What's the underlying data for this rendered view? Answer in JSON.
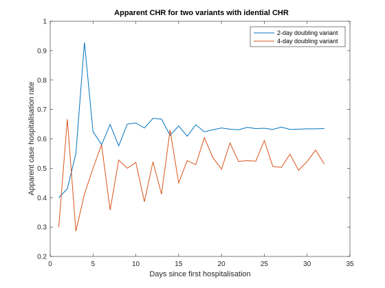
{
  "chart_data": {
    "type": "line",
    "title": "Apparent CHR for two variants with idential CHR",
    "xlabel": "Days since first hospitalisation",
    "ylabel": "Apparent case hospitalisation rate",
    "xlim": [
      0,
      35
    ],
    "ylim": [
      0.2,
      1
    ],
    "xticks": [
      "0",
      "5",
      "10",
      "15",
      "20",
      "25",
      "30",
      "35"
    ],
    "yticks": [
      "0.2",
      "0.3",
      "0.4",
      "0.5",
      "0.6",
      "0.7",
      "0.8",
      "0.9",
      "1"
    ],
    "grid": false,
    "legend_position": "top-right",
    "x": [
      1,
      2,
      3,
      4,
      5,
      6,
      7,
      8,
      9,
      10,
      11,
      12,
      13,
      14,
      15,
      16,
      17,
      18,
      19,
      20,
      21,
      22,
      23,
      24,
      25,
      26,
      27,
      28,
      29,
      30,
      31,
      32
    ],
    "series": [
      {
        "name": "2-day doubling variant",
        "color": "#0072BD",
        "values": [
          0.4,
          0.43,
          0.55,
          0.928,
          0.625,
          0.58,
          0.649,
          0.576,
          0.65,
          0.654,
          0.637,
          0.67,
          0.667,
          0.612,
          0.644,
          0.609,
          0.648,
          0.624,
          0.631,
          0.637,
          0.633,
          0.631,
          0.639,
          0.635,
          0.636,
          0.632,
          0.64,
          0.632,
          0.633,
          0.634,
          0.634,
          0.635
        ]
      },
      {
        "name": "4-day doubling variant",
        "color": "#D95319",
        "values": [
          0.3,
          0.667,
          0.286,
          0.412,
          0.5,
          0.58,
          0.358,
          0.528,
          0.5,
          0.52,
          0.386,
          0.522,
          0.412,
          0.63,
          0.45,
          0.526,
          0.512,
          0.604,
          0.536,
          0.497,
          0.586,
          0.523,
          0.526,
          0.524,
          0.594,
          0.506,
          0.503,
          0.548,
          0.493,
          0.523,
          0.562,
          0.514
        ]
      }
    ]
  }
}
